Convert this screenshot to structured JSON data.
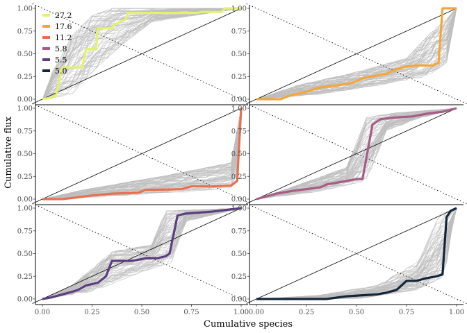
{
  "chart_data": {
    "type": "line",
    "xlabel": "Cumulative species",
    "ylabel": "Cumulative flux",
    "xlim": [
      0,
      1
    ],
    "ylim": [
      0,
      1
    ],
    "x_ticks": [
      "0.00",
      "0.25",
      "0.50",
      "0.75",
      "1.00"
    ],
    "y_ticks": [
      "0.00",
      "0.25",
      "0.50",
      "0.75",
      "1.00"
    ],
    "grid": false,
    "legend_position": "top-left",
    "colors": {
      "background_lines": "#bebebe",
      "diagonal": "#000000",
      "dotted": "#000000"
    },
    "legend": [
      {
        "label": "27.2",
        "color": "#e3f26a"
      },
      {
        "label": "17.6",
        "color": "#f5a63a"
      },
      {
        "label": "11.2",
        "color": "#e8704e"
      },
      {
        "label": "5.8",
        "color": "#a65c86"
      },
      {
        "label": "5.5",
        "color": "#5c3e80"
      },
      {
        "label": "5.0",
        "color": "#12263a"
      }
    ],
    "panels": [
      {
        "series": "27.2",
        "color": "#e3f26a",
        "x": [
          0.0,
          0.05,
          0.07,
          0.1,
          0.14,
          0.2,
          0.22,
          0.27,
          0.28,
          0.35,
          0.36,
          0.42,
          0.43,
          0.78,
          0.8,
          0.9,
          0.92,
          1.0
        ],
        "y": [
          0.0,
          0.02,
          0.05,
          0.35,
          0.35,
          0.35,
          0.55,
          0.55,
          0.78,
          0.78,
          0.82,
          0.88,
          0.95,
          0.95,
          0.96,
          0.96,
          1.0,
          1.0
        ],
        "band": {
          "lo_x": [
            0.0,
            0.15,
            0.25,
            0.4,
            0.55,
            1.0
          ],
          "lo_y": [
            0.0,
            0.05,
            0.3,
            0.6,
            0.85,
            1.0
          ],
          "hi_x": [
            0.0,
            0.05,
            0.15,
            0.25,
            0.35,
            1.0
          ],
          "hi_y": [
            0.0,
            0.3,
            0.7,
            0.92,
            1.0,
            1.0
          ]
        }
      },
      {
        "series": "17.6",
        "color": "#f5a63a",
        "x": [
          0.0,
          0.12,
          0.18,
          0.25,
          0.3,
          0.35,
          0.4,
          0.48,
          0.52,
          0.55,
          0.6,
          0.65,
          0.7,
          0.75,
          0.8,
          0.88,
          0.91,
          0.93,
          0.95,
          1.0
        ],
        "y": [
          0.0,
          0.0,
          0.05,
          0.08,
          0.12,
          0.14,
          0.15,
          0.18,
          0.22,
          0.24,
          0.26,
          0.28,
          0.33,
          0.36,
          0.37,
          0.37,
          0.4,
          1.0,
          1.0,
          1.0
        ],
        "band": {
          "lo_x": [
            0.0,
            0.3,
            0.6,
            0.85,
            0.95,
            1.0
          ],
          "lo_y": [
            0.0,
            0.05,
            0.15,
            0.25,
            0.4,
            1.0
          ],
          "hi_x": [
            0.0,
            0.2,
            0.5,
            0.75,
            0.88,
            1.0
          ],
          "hi_y": [
            0.0,
            0.15,
            0.3,
            0.45,
            0.75,
            1.0
          ]
        }
      },
      {
        "series": "11.2",
        "color": "#e8704e",
        "x": [
          0.0,
          0.1,
          0.18,
          0.25,
          0.35,
          0.48,
          0.52,
          0.7,
          0.75,
          0.85,
          0.95,
          0.98,
          1.0
        ],
        "y": [
          0.0,
          0.0,
          0.02,
          0.04,
          0.06,
          0.07,
          0.1,
          0.11,
          0.14,
          0.14,
          0.15,
          0.2,
          1.0
        ],
        "band": {
          "lo_x": [
            0.0,
            0.4,
            0.8,
            0.97,
            1.0
          ],
          "lo_y": [
            0.0,
            0.03,
            0.08,
            0.12,
            1.0
          ],
          "hi_x": [
            0.0,
            0.2,
            0.6,
            0.95,
            1.0
          ],
          "hi_y": [
            0.0,
            0.1,
            0.25,
            0.4,
            1.0
          ]
        }
      },
      {
        "series": "5.8",
        "color": "#a65c86",
        "x": [
          0.0,
          0.05,
          0.1,
          0.18,
          0.25,
          0.32,
          0.35,
          0.45,
          0.5,
          0.53,
          0.58,
          0.62,
          0.7,
          0.78,
          0.85,
          0.93,
          1.0
        ],
        "y": [
          0.0,
          0.03,
          0.06,
          0.09,
          0.11,
          0.13,
          0.16,
          0.2,
          0.22,
          0.22,
          0.82,
          0.88,
          0.9,
          0.91,
          0.94,
          0.96,
          1.0
        ],
        "band": {
          "lo_x": [
            0.0,
            0.3,
            0.55,
            0.65,
            0.8,
            1.0
          ],
          "lo_y": [
            0.0,
            0.08,
            0.2,
            0.75,
            0.88,
            1.0
          ],
          "hi_x": [
            0.0,
            0.2,
            0.45,
            0.55,
            0.7,
            1.0
          ],
          "hi_y": [
            0.0,
            0.15,
            0.35,
            0.9,
            0.95,
            1.0
          ]
        }
      },
      {
        "series": "5.5",
        "color": "#5c3e80",
        "x": [
          0.0,
          0.05,
          0.1,
          0.15,
          0.18,
          0.22,
          0.28,
          0.32,
          0.35,
          0.45,
          0.5,
          0.52,
          0.58,
          0.62,
          0.64,
          0.68,
          0.72,
          0.78,
          0.85,
          1.0
        ],
        "y": [
          0.0,
          0.02,
          0.05,
          0.08,
          0.1,
          0.15,
          0.18,
          0.25,
          0.42,
          0.42,
          0.44,
          0.45,
          0.45,
          0.47,
          0.5,
          0.92,
          0.94,
          0.95,
          0.96,
          1.0
        ],
        "band": {
          "lo_x": [
            0.0,
            0.25,
            0.5,
            0.65,
            0.72,
            1.0
          ],
          "lo_y": [
            0.0,
            0.08,
            0.3,
            0.4,
            0.85,
            1.0
          ],
          "hi_x": [
            0.0,
            0.15,
            0.35,
            0.55,
            0.62,
            1.0
          ],
          "hi_y": [
            0.0,
            0.15,
            0.52,
            0.6,
            0.97,
            1.0
          ]
        }
      },
      {
        "series": "5.0",
        "color": "#12263a",
        "x": [
          0.0,
          0.35,
          0.45,
          0.6,
          0.65,
          0.7,
          0.75,
          0.8,
          0.85,
          0.9,
          0.93,
          0.95,
          0.97,
          1.0
        ],
        "y": [
          0.0,
          0.0,
          0.03,
          0.05,
          0.07,
          0.1,
          0.2,
          0.2,
          0.23,
          0.25,
          0.27,
          0.9,
          0.97,
          1.0
        ],
        "band": {
          "lo_x": [
            0.0,
            0.5,
            0.8,
            0.94,
            0.97,
            1.0
          ],
          "lo_y": [
            0.0,
            0.0,
            0.1,
            0.25,
            0.7,
            1.0
          ],
          "hi_x": [
            0.0,
            0.3,
            0.6,
            0.8,
            0.92,
            1.0
          ],
          "hi_y": [
            0.0,
            0.04,
            0.15,
            0.4,
            0.95,
            1.0
          ]
        }
      }
    ]
  }
}
